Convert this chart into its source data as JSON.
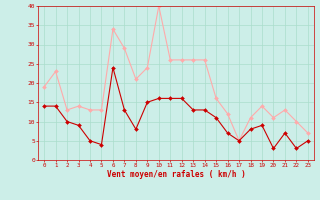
{
  "hours": [
    0,
    1,
    2,
    3,
    4,
    5,
    6,
    7,
    8,
    9,
    10,
    11,
    12,
    13,
    14,
    15,
    16,
    17,
    18,
    19,
    20,
    21,
    22,
    23
  ],
  "avg_wind": [
    14,
    14,
    10,
    9,
    5,
    4,
    24,
    13,
    8,
    15,
    16,
    16,
    16,
    13,
    13,
    11,
    7,
    5,
    8,
    9,
    3,
    7,
    3,
    5
  ],
  "gust_wind": [
    19,
    23,
    13,
    14,
    13,
    13,
    34,
    29,
    21,
    24,
    40,
    26,
    26,
    26,
    26,
    16,
    12,
    5,
    11,
    14,
    11,
    13,
    10,
    7
  ],
  "avg_color": "#cc0000",
  "gust_color": "#ffaaaa",
  "bg_color": "#cceee8",
  "grid_color": "#aaddcc",
  "xlabel": "Vent moyen/en rafales ( km/h )",
  "xlabel_color": "#cc0000",
  "ylim": [
    0,
    40
  ],
  "yticks": [
    0,
    5,
    10,
    15,
    20,
    25,
    30,
    35,
    40
  ]
}
